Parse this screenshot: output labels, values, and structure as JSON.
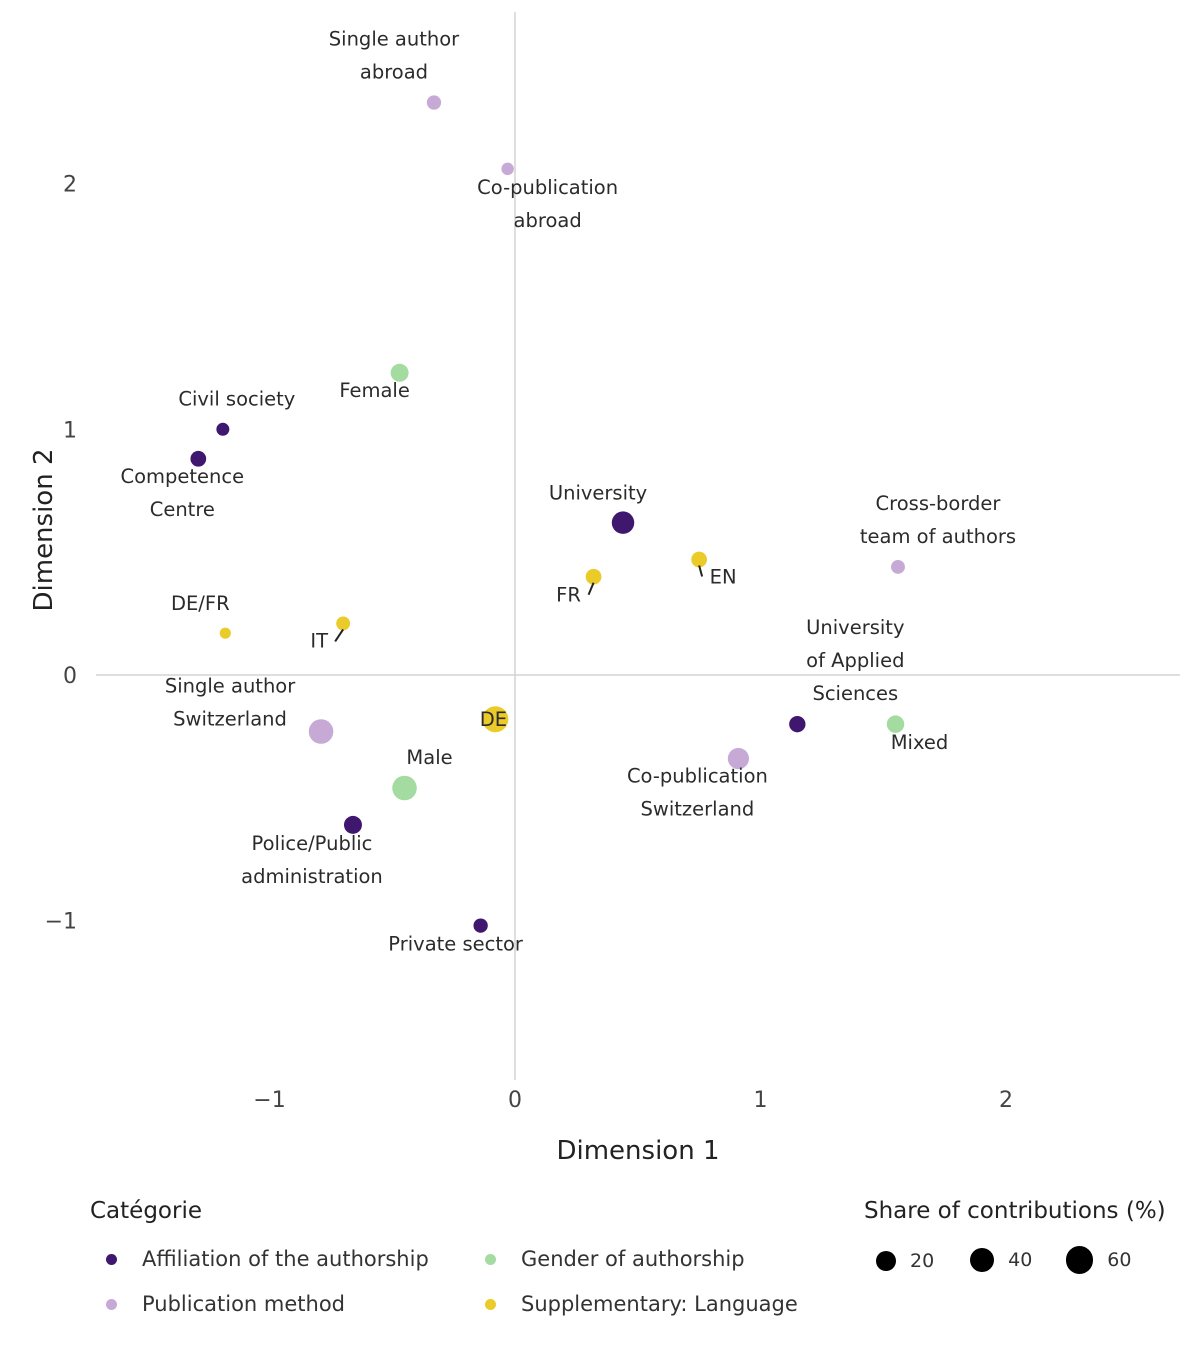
{
  "chart_data": {
    "type": "scatter",
    "xlabel": "Dimension 1",
    "ylabel": "Dimension 2",
    "xlim": [
      -1.7,
      2.7
    ],
    "ylim": [
      -1.7,
      2.7
    ],
    "x_ticks": [
      -1,
      0,
      1,
      2
    ],
    "y_ticks": [
      -1,
      0,
      1,
      2
    ],
    "x_tick_labels": [
      "−1",
      "0",
      "1",
      "2"
    ],
    "y_tick_labels": [
      "−1",
      "0",
      "1",
      "2"
    ],
    "grid": false,
    "reference_lines": [
      0,
      0
    ],
    "legend_color": {
      "title": "Catégorie",
      "entries": [
        {
          "label": "Affiliation of the authorship",
          "color": "#40176e"
        },
        {
          "label": "Gender of authorship",
          "color": "#a3dba0"
        },
        {
          "label": "Publication method",
          "color": "#c7a9d6"
        },
        {
          "label": "Supplementary: Language",
          "color": "#ebcb2a"
        }
      ],
      "placement": "bottom-left"
    },
    "legend_size": {
      "title": "Share of contributions (%)",
      "entries": [
        {
          "label": "20",
          "value": 20
        },
        {
          "label": "40",
          "value": 40
        },
        {
          "label": "60",
          "value": 60
        }
      ],
      "placement": "bottom-right"
    },
    "points": [
      {
        "label": "Single author\nabroad",
        "category": "Publication method",
        "x": -0.33,
        "y": 2.33,
        "share": 8
      },
      {
        "label": "Co-publication\nabroad",
        "category": "Publication method",
        "x": -0.03,
        "y": 2.06,
        "share": 4
      },
      {
        "label": "Female",
        "category": "Gender of authorship",
        "x": -0.47,
        "y": 1.23,
        "share": 20
      },
      {
        "label": "Civil society",
        "category": "Affiliation of the authorship",
        "x": -1.19,
        "y": 1.0,
        "share": 5
      },
      {
        "label": "Competence\nCentre",
        "category": "Affiliation of the authorship",
        "x": -1.29,
        "y": 0.88,
        "share": 12
      },
      {
        "label": "University",
        "category": "Affiliation of the authorship",
        "x": 0.44,
        "y": 0.62,
        "share": 42
      },
      {
        "label": "Cross-border\nteam of authors",
        "category": "Publication method",
        "x": 1.56,
        "y": 0.44,
        "share": 7
      },
      {
        "label": "EN",
        "category": "Supplementary: Language",
        "x": 0.75,
        "y": 0.47,
        "share": 12
      },
      {
        "label": "FR",
        "category": "Supplementary: Language",
        "x": 0.32,
        "y": 0.4,
        "share": 12
      },
      {
        "label": "IT",
        "category": "Supplementary: Language",
        "x": -0.7,
        "y": 0.21,
        "share": 7
      },
      {
        "label": "DE/FR",
        "category": "Supplementary: Language",
        "x": -1.18,
        "y": 0.17,
        "share": 2
      },
      {
        "label": "University\nof Applied\nSciences",
        "category": "Affiliation of the authorship",
        "x": 1.15,
        "y": -0.2,
        "share": 14
      },
      {
        "label": "Mixed",
        "category": "Gender of authorship",
        "x": 1.55,
        "y": -0.2,
        "share": 18
      },
      {
        "label": "DE",
        "category": "Supplementary: Language",
        "x": -0.08,
        "y": -0.18,
        "share": 65
      },
      {
        "label": "Single author\nSwitzerland",
        "category": "Publication method",
        "x": -0.79,
        "y": -0.23,
        "share": 55
      },
      {
        "label": "Co-publication\nSwitzerland",
        "category": "Publication method",
        "x": 0.91,
        "y": -0.34,
        "share": 35
      },
      {
        "label": "Male",
        "category": "Gender of authorship",
        "x": -0.45,
        "y": -0.46,
        "share": 55
      },
      {
        "label": "Police/Public\nadministration",
        "category": "Affiliation of the authorship",
        "x": -0.66,
        "y": -0.61,
        "share": 20
      },
      {
        "label": "Private sector",
        "category": "Affiliation of the authorship",
        "x": -0.14,
        "y": -1.02,
        "share": 8
      }
    ]
  }
}
